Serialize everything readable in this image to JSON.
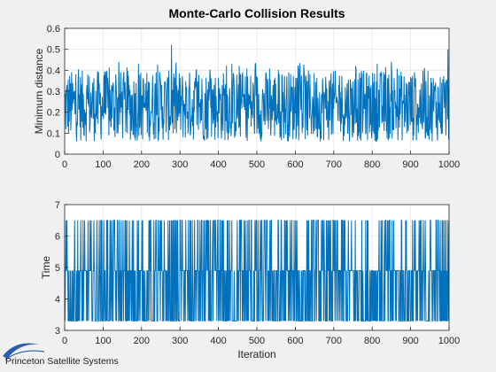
{
  "chart_data": [
    {
      "type": "line",
      "title": "Monte-Carlo Collision Results",
      "xlabel": "",
      "ylabel": "Minimum distance",
      "xlim": [
        0,
        1000
      ],
      "ylim": [
        0,
        0.6
      ],
      "xticks": [
        "0",
        "100",
        "200",
        "300",
        "400",
        "500",
        "600",
        "700",
        "800",
        "900",
        "1000"
      ],
      "yticks": [
        "0",
        "0.1",
        "0.2",
        "0.3",
        "0.4",
        "0.5",
        "0.6"
      ],
      "grid": true,
      "series": [
        {
          "color": "#0072bd",
          "generated": "approx noisy series between ~0.06 and ~0.40 over 1000 iterations",
          "noted_peaks": [
            [
              278,
              0.52
            ],
            [
              997,
              0.5
            ]
          ]
        }
      ]
    },
    {
      "type": "line",
      "title": "",
      "xlabel": "Iteration",
      "ylabel": "Time",
      "xlim": [
        0,
        1000
      ],
      "ylim": [
        3,
        7
      ],
      "xticks": [
        "0",
        "100",
        "200",
        "300",
        "400",
        "500",
        "600",
        "700",
        "800",
        "900",
        "1000"
      ],
      "yticks": [
        "3",
        "4",
        "5",
        "6",
        "7"
      ],
      "grid": true,
      "series": [
        {
          "color": "#0072bd",
          "levels": [
            3.3,
            4.9,
            6.5
          ],
          "level_weights": [
            0.45,
            0.35,
            0.2
          ]
        }
      ]
    }
  ],
  "logo": {
    "text": "Princeton Satellite Systems",
    "color": "#2a5db0"
  },
  "colors": {
    "background": "#f0f0f0",
    "axes_bg": "#ffffff",
    "line": "#0072bd",
    "grid": "#e6e6e6"
  }
}
